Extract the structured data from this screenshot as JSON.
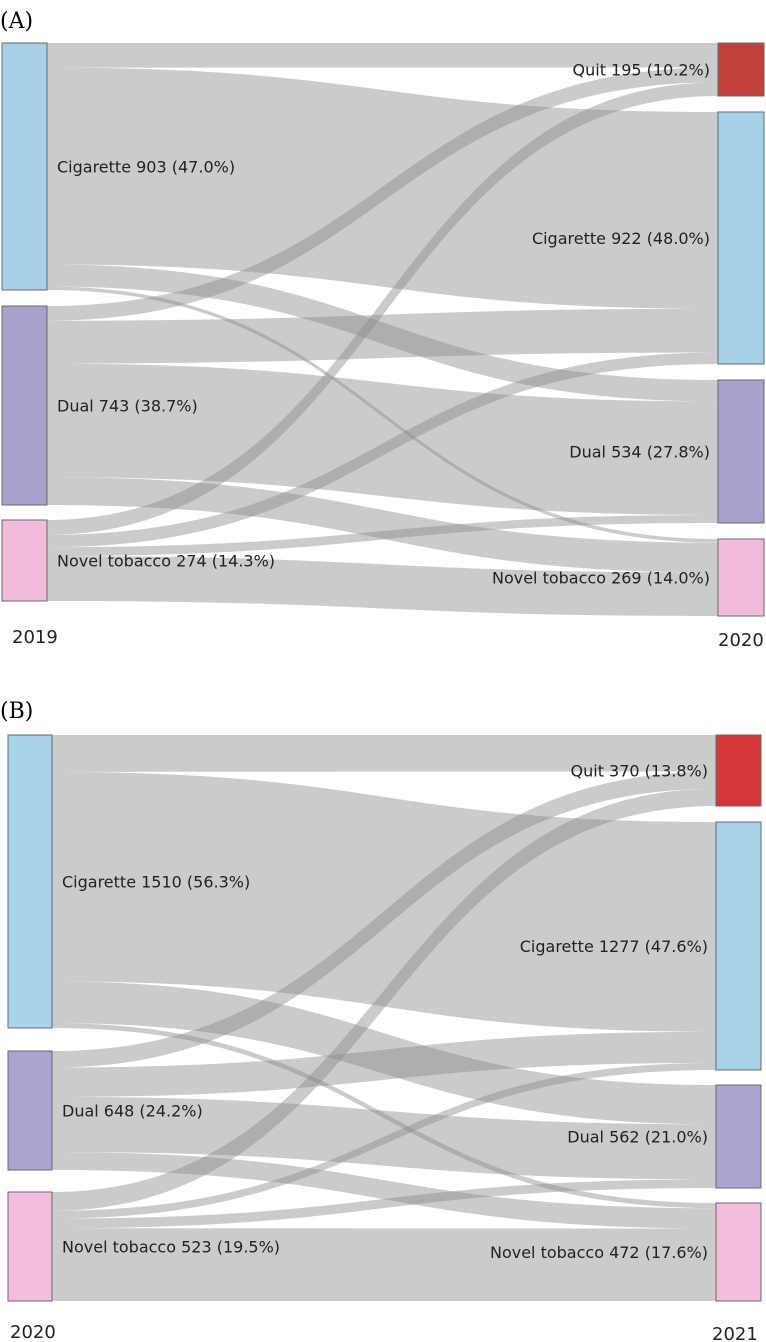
{
  "chart_data": [
    {
      "type": "sankey",
      "panel_label": "(A)",
      "source_year": "2019",
      "target_year": "2020",
      "sources": [
        {
          "id": "cig",
          "label": "Cigarette 903 (47.0%)",
          "value": 903,
          "color": "#a8d0e6"
        },
        {
          "id": "dual",
          "label": "Dual 743 (38.7%)",
          "value": 743,
          "color": "#a8a1cc"
        },
        {
          "id": "novel",
          "label": "Novel tobacco 274 (14.3%)",
          "value": 274,
          "color": "#f0bcda"
        }
      ],
      "targets": [
        {
          "id": "quit",
          "label": "Quit 195 (10.2%)",
          "value": 195,
          "color": "#c0403c"
        },
        {
          "id": "cig",
          "label": "Cigarette 922 (48.0%)",
          "value": 922,
          "color": "#a8d0e6"
        },
        {
          "id": "dual",
          "label": "Dual 534 (27.8%)",
          "value": 534,
          "color": "#a8a1cc"
        },
        {
          "id": "novel",
          "label": "Novel tobacco 269 (14.0%)",
          "value": 269,
          "color": "#f0bcda"
        }
      ],
      "flows": [
        {
          "from": "cig",
          "to": "quit",
          "value": 90
        },
        {
          "from": "cig",
          "to": "cig",
          "value": 720
        },
        {
          "from": "cig",
          "to": "dual",
          "value": 80
        },
        {
          "from": "cig",
          "to": "novel",
          "value": 13
        },
        {
          "from": "dual",
          "to": "quit",
          "value": 55
        },
        {
          "from": "dual",
          "to": "cig",
          "value": 160
        },
        {
          "from": "dual",
          "to": "dual",
          "value": 424
        },
        {
          "from": "dual",
          "to": "novel",
          "value": 104
        },
        {
          "from": "novel",
          "to": "quit",
          "value": 50
        },
        {
          "from": "novel",
          "to": "cig",
          "value": 42
        },
        {
          "from": "novel",
          "to": "dual",
          "value": 30
        },
        {
          "from": "novel",
          "to": "novel",
          "value": 152
        }
      ]
    },
    {
      "type": "sankey",
      "panel_label": "(B)",
      "source_year": "2020",
      "target_year": "2021",
      "sources": [
        {
          "id": "cig",
          "label": "Cigarette 1510 (56.3%)",
          "value": 1510,
          "color": "#a8d3ea"
        },
        {
          "id": "dual",
          "label": "Dual 648 (24.2%)",
          "value": 648,
          "color": "#aaa5d0"
        },
        {
          "id": "novel",
          "label": "Novel tobacco 523 (19.5%)",
          "value": 523,
          "color": "#f2bcdc"
        }
      ],
      "targets": [
        {
          "id": "quit",
          "label": "Quit 370 (13.8%)",
          "value": 370,
          "color": "#d4363a"
        },
        {
          "id": "cig",
          "label": "Cigarette 1277 (47.6%)",
          "value": 1277,
          "color": "#a8d3ea"
        },
        {
          "id": "dual",
          "label": "Dual 562 (21.0%)",
          "value": 562,
          "color": "#aaa5d0"
        },
        {
          "id": "novel",
          "label": "Novel tobacco 472 (17.6%)",
          "value": 472,
          "color": "#f2bcdc"
        }
      ],
      "flows": [
        {
          "from": "cig",
          "to": "quit",
          "value": 190
        },
        {
          "from": "cig",
          "to": "cig",
          "value": 1080
        },
        {
          "from": "cig",
          "to": "dual",
          "value": 215
        },
        {
          "from": "cig",
          "to": "novel",
          "value": 25
        },
        {
          "from": "dual",
          "to": "quit",
          "value": 90
        },
        {
          "from": "dual",
          "to": "cig",
          "value": 160
        },
        {
          "from": "dual",
          "to": "dual",
          "value": 300
        },
        {
          "from": "dual",
          "to": "novel",
          "value": 98
        },
        {
          "from": "novel",
          "to": "quit",
          "value": 90
        },
        {
          "from": "novel",
          "to": "cig",
          "value": 37
        },
        {
          "from": "novel",
          "to": "dual",
          "value": 47
        },
        {
          "from": "novel",
          "to": "novel",
          "value": 349
        }
      ]
    }
  ]
}
